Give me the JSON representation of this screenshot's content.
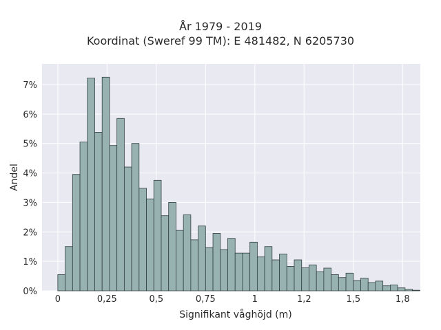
{
  "chart_data": {
    "type": "bar",
    "title": "År 1979 - 2019",
    "subtitle": "Koordinat (Sweref 99 TM): E 481482, N 6205730",
    "xlabel": "Signifikant våghöjd (m)",
    "ylabel": "Andel",
    "xlim": [
      -0.08,
      1.84
    ],
    "ylim": [
      0,
      7.7
    ],
    "x_ticks": [
      {
        "value": 0,
        "label": "0"
      },
      {
        "value": 0.25,
        "label": "0,25"
      },
      {
        "value": 0.5,
        "label": "0,5"
      },
      {
        "value": 0.75,
        "label": "0,75"
      },
      {
        "value": 1,
        "label": "1"
      },
      {
        "value": 1.25,
        "label": "1,2"
      },
      {
        "value": 1.5,
        "label": "1,5"
      },
      {
        "value": 1.75,
        "label": "1,8"
      }
    ],
    "y_ticks": [
      {
        "value": 0,
        "label": "0%"
      },
      {
        "value": 1,
        "label": "1%"
      },
      {
        "value": 2,
        "label": "2%"
      },
      {
        "value": 3,
        "label": "3%"
      },
      {
        "value": 4,
        "label": "4%"
      },
      {
        "value": 5,
        "label": "5%"
      },
      {
        "value": 6,
        "label": "6%"
      },
      {
        "value": 7,
        "label": "7%"
      }
    ],
    "bin_start": 0,
    "bin_width": 0.0375,
    "values": [
      0.55,
      1.5,
      3.95,
      5.05,
      7.22,
      5.38,
      7.25,
      4.93,
      5.85,
      4.2,
      5.0,
      3.48,
      3.12,
      3.75,
      2.55,
      3.0,
      2.05,
      2.58,
      1.73,
      2.2,
      1.47,
      1.95,
      1.4,
      1.78,
      1.28,
      1.28,
      1.65,
      1.15,
      1.5,
      1.05,
      1.25,
      0.83,
      1.05,
      0.78,
      0.88,
      0.65,
      0.77,
      0.55,
      0.45,
      0.6,
      0.35,
      0.43,
      0.28,
      0.33,
      0.17,
      0.2,
      0.1,
      0.05,
      0.02
    ],
    "grid": true,
    "colors": {
      "bar_fill": "#98b2b2",
      "bar_stroke": "#2f3f3f",
      "plot_bg": "#e9e9f2",
      "grid": "#ffffff"
    }
  }
}
